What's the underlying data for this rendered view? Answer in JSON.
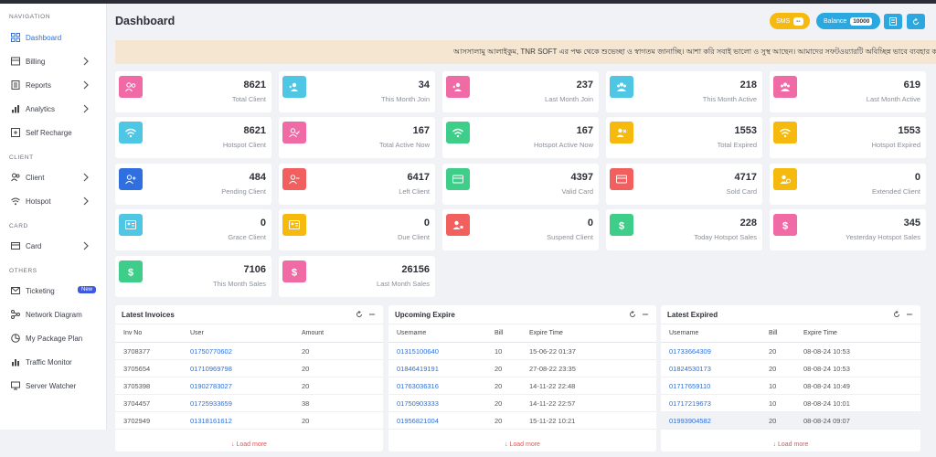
{
  "title": "Dashboard",
  "sidebar": {
    "sections": [
      "NAVIGATION",
      "CLIENT",
      "CARD",
      "OTHERS"
    ],
    "items": [
      {
        "label": "Dashboard",
        "icon": "dashboard-icon"
      },
      {
        "label": "Billing",
        "icon": "billing-icon"
      },
      {
        "label": "Reports",
        "icon": "reports-icon"
      },
      {
        "label": "Analytics",
        "icon": "analytics-icon"
      },
      {
        "label": "Self Recharge",
        "icon": "recharge-icon"
      },
      {
        "label": "Client",
        "icon": "client-icon"
      },
      {
        "label": "Hotspot",
        "icon": "wifi-icon"
      },
      {
        "label": "Card",
        "icon": "card-icon"
      },
      {
        "label": "Ticketing",
        "icon": "mail-icon",
        "badge": "New"
      },
      {
        "label": "Network Diagram",
        "icon": "network-icon"
      },
      {
        "label": "My Package Plan",
        "icon": "package-icon"
      },
      {
        "label": "Traffic Monitor",
        "icon": "traffic-icon"
      },
      {
        "label": "Server Watcher",
        "icon": "monitor-icon"
      }
    ]
  },
  "header": {
    "sms_label": "SMS",
    "sms_value": "--",
    "balance_label": "Balance",
    "balance_value": "10000"
  },
  "notice": "আসসালামু আলাইকুম, TNR SOFT এর পক্ষ থেকে শুভেচ্ছা ও স্বাগতম জানাচ্ছি। আশা করি সবাই ভালো ও সুস্থ আছেন। আমাদের সফটওয়্যারটি অবিচ্ছিন্ন ভাবে ব্যবহার ক",
  "colors": {
    "pink": "#f06aa6",
    "cyan": "#4fc6e3",
    "red": "#f25f5f",
    "green": "#3fcd8a",
    "amber": "#f6b90e",
    "blue": "#2f6fe0"
  },
  "cards": [
    {
      "value": "8621",
      "label": "Total Client",
      "color": "#f06aa6",
      "icon": "users-icon"
    },
    {
      "value": "34",
      "label": "This Month Join",
      "color": "#4fc6e3",
      "icon": "users-add-icon"
    },
    {
      "value": "237",
      "label": "Last Month Join",
      "color": "#f06aa6",
      "icon": "users-add-icon"
    },
    {
      "value": "218",
      "label": "This Month Active",
      "color": "#4fc6e3",
      "icon": "users-group-icon"
    },
    {
      "value": "619",
      "label": "Last Month Active",
      "color": "#f06aa6",
      "icon": "users-group-icon"
    },
    {
      "value": "8621",
      "label": "Hotspot Client",
      "color": "#4fc6e3",
      "icon": "wifi-icon"
    },
    {
      "value": "167",
      "label": "Total Active Now",
      "color": "#f06aa6",
      "icon": "user-check-icon"
    },
    {
      "value": "167",
      "label": "Hotspot Active Now",
      "color": "#3fcd8a",
      "icon": "wifi-icon"
    },
    {
      "value": "1553",
      "label": "Total Expired",
      "color": "#f6b90e",
      "icon": "user-x-icon"
    },
    {
      "value": "1553",
      "label": "Hotspot Expired",
      "color": "#f6b90e",
      "icon": "wifi-icon"
    },
    {
      "value": "484",
      "label": "Pending Client",
      "color": "#2f6fe0",
      "icon": "user-plus-icon"
    },
    {
      "value": "6417",
      "label": "Left Client",
      "color": "#f25f5f",
      "icon": "user-minus-icon"
    },
    {
      "value": "4397",
      "label": "Valid Card",
      "color": "#3fcd8a",
      "icon": "card-icon"
    },
    {
      "value": "4717",
      "label": "Sold Card",
      "color": "#f25f5f",
      "icon": "card-icon"
    },
    {
      "value": "0",
      "label": "Extended Client",
      "color": "#f6b90e",
      "icon": "user-clock-icon"
    },
    {
      "value": "0",
      "label": "Grace Client",
      "color": "#4fc6e3",
      "icon": "id-card-icon"
    },
    {
      "value": "0",
      "label": "Due Client",
      "color": "#f6b90e",
      "icon": "id-card-icon"
    },
    {
      "value": "0",
      "label": "Suspend Client",
      "color": "#f25f5f",
      "icon": "user-lock-icon"
    },
    {
      "value": "228",
      "label": "Today Hotspot Sales",
      "color": "#3fcd8a",
      "icon": "dollar-icon"
    },
    {
      "value": "345",
      "label": "Yesterday Hotspot Sales",
      "color": "#f06aa6",
      "icon": "dollar-icon"
    },
    {
      "value": "7106",
      "label": "This Month Sales",
      "color": "#3fcd8a",
      "icon": "dollar-icon"
    },
    {
      "value": "26156",
      "label": "Last Month Sales",
      "color": "#f06aa6",
      "icon": "dollar-icon"
    }
  ],
  "invoices": {
    "title": "Latest Invoices",
    "cols": [
      "Inv No",
      "User",
      "Amount"
    ],
    "rows": [
      [
        "3708377",
        "01750770602",
        "20"
      ],
      [
        "3705654",
        "01710969798",
        "20"
      ],
      [
        "3705398",
        "01902783027",
        "20"
      ],
      [
        "3704457",
        "01725933659",
        "38"
      ],
      [
        "3702949",
        "01318161612",
        "20"
      ]
    ],
    "more": "Load more"
  },
  "upcoming": {
    "title": "Upcoming Expire",
    "cols": [
      "Username",
      "Bill",
      "Expire Time"
    ],
    "rows": [
      [
        "01315100640",
        "10",
        "15-06-22 01:37"
      ],
      [
        "01846419191",
        "20",
        "27-08-22 23:35"
      ],
      [
        "01763036316",
        "20",
        "14-11-22 22:48"
      ],
      [
        "01750903333",
        "20",
        "14-11-22 22:57"
      ],
      [
        "01956821004",
        "20",
        "15-11-22 10:21"
      ]
    ],
    "more": "Load more"
  },
  "expired": {
    "title": "Latest Expired",
    "cols": [
      "Username",
      "Bill",
      "Expire Time"
    ],
    "rows": [
      [
        "01733664309",
        "20",
        "08-08-24 10:53"
      ],
      [
        "01824530173",
        "20",
        "08-08-24 10:53"
      ],
      [
        "01717659110",
        "10",
        "08-08-24 10:49"
      ],
      [
        "01717219673",
        "10",
        "08-08-24 10:01"
      ],
      [
        "01993904582",
        "20",
        "08-08-24 09:07"
      ]
    ],
    "more": "Load more"
  }
}
